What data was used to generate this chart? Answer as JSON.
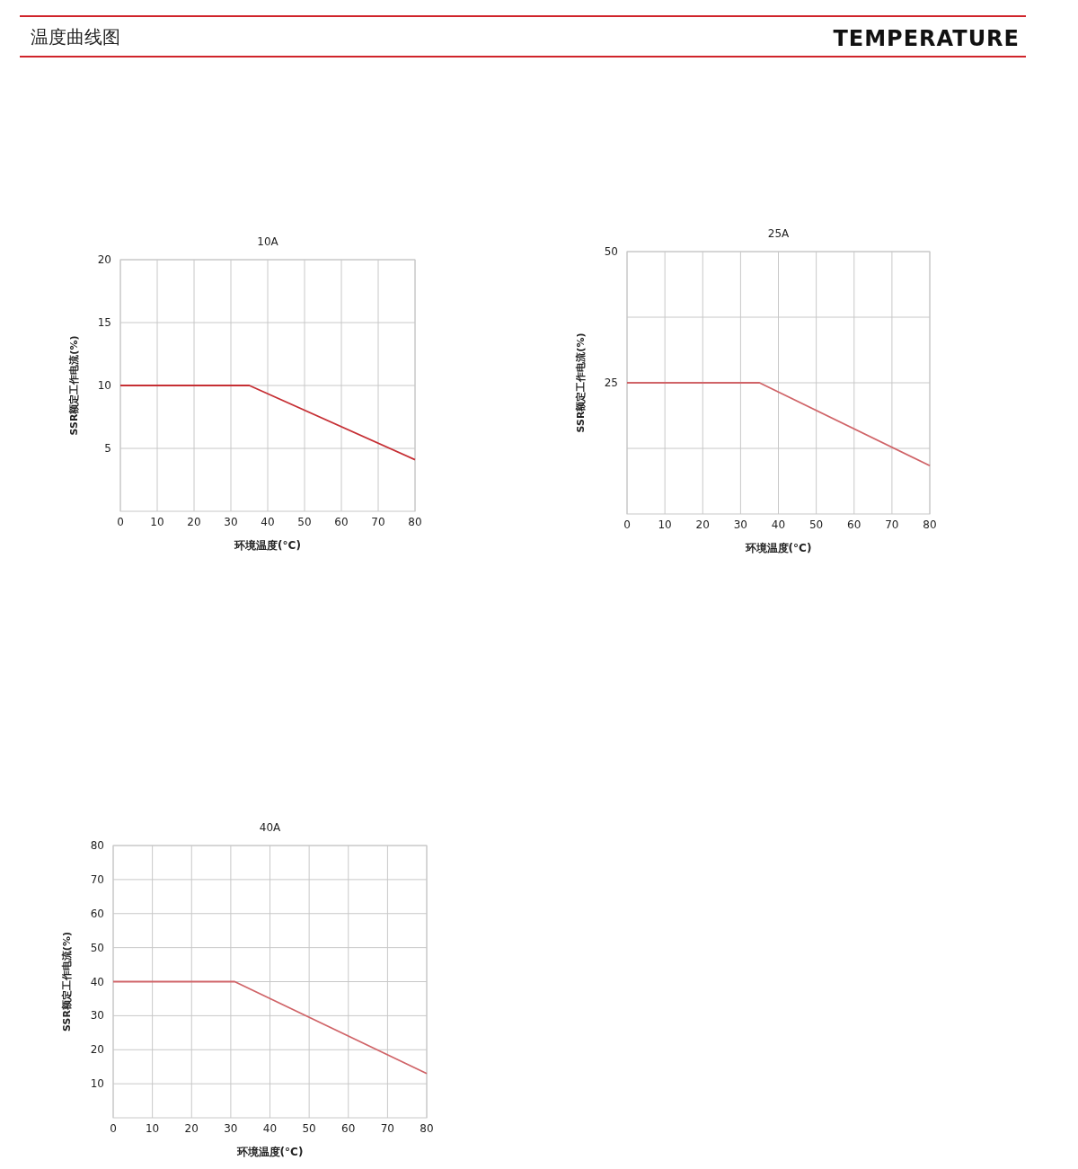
{
  "chart_data": [
    {
      "type": "other",
      "title": "温度曲线图",
      "subtitle": "TEMPERATURE"
    },
    {
      "type": "line",
      "title": "10A",
      "xlabel": "环境温度(°C)",
      "ylabel": "SSR额定工作电流(%)",
      "x": [
        0,
        35,
        80
      ],
      "series": [
        {
          "color": "#c62f34",
          "values": [
            10,
            10,
            4.1
          ]
        }
      ],
      "xlim": [
        0,
        80
      ],
      "xticks": [
        0,
        10,
        20,
        30,
        40,
        50,
        60,
        70,
        80
      ],
      "ylim": [
        0,
        20
      ],
      "yticks": [
        5,
        10,
        15,
        20
      ],
      "grid": true
    },
    {
      "type": "line",
      "title": "25A",
      "xlabel": "环境温度(°C)",
      "ylabel": "SSR额定工作电流(%)",
      "x": [
        0,
        35,
        80
      ],
      "series": [
        {
          "color": "#d06468",
          "values": [
            25,
            25,
            9.2
          ]
        }
      ],
      "xlim": [
        0,
        80
      ],
      "xticks": [
        0,
        10,
        20,
        30,
        40,
        50,
        60,
        70,
        80
      ],
      "ylim": [
        0,
        50
      ],
      "yticks": [
        {
          "value": 12.5,
          "label": null
        },
        25,
        {
          "value": 37.5,
          "label": null
        },
        50
      ],
      "grid": true
    },
    {
      "type": "line",
      "title": "40A",
      "xlabel": "环境温度(°C)",
      "ylabel": "SSR额定工作电流(%)",
      "x": [
        0,
        31,
        80
      ],
      "series": [
        {
          "color": "#d06468",
          "values": [
            40,
            40,
            13
          ]
        }
      ],
      "xlim": [
        0,
        80
      ],
      "xticks": [
        0,
        10,
        20,
        30,
        40,
        50,
        60,
        70,
        80
      ],
      "ylim": [
        0,
        80
      ],
      "yticks": [
        10,
        20,
        30,
        40,
        50,
        60,
        70,
        80
      ],
      "grid": true
    }
  ]
}
